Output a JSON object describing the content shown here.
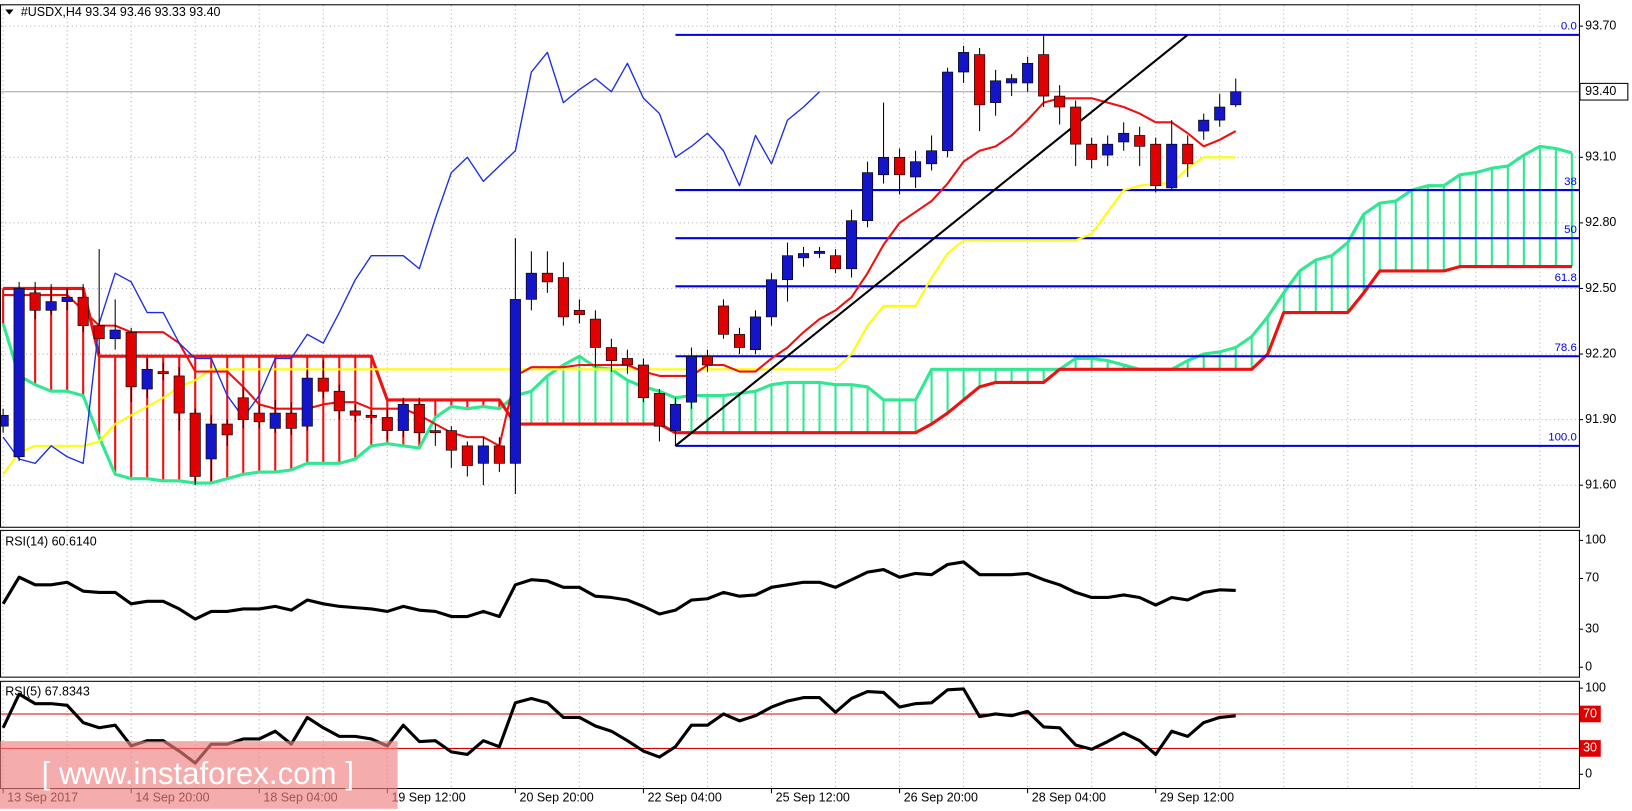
{
  "chart_data": [
    {
      "type": "candlestick",
      "header": "#USDX,H4  93.34 93.46 93.33 93.40",
      "watermark": "[ www.instaforex.com ]",
      "categories": [
        "13 Sep 2017",
        null,
        null,
        null,
        null,
        null,
        null,
        null,
        "14 Sep 20:00",
        null,
        null,
        null,
        null,
        null,
        null,
        null,
        "18 Sep 04:00",
        null,
        null,
        null,
        null,
        null,
        null,
        null,
        "19 Sep 12:00",
        null,
        null,
        null,
        null,
        null,
        null,
        null,
        "20 Sep 20:00",
        null,
        null,
        null,
        null,
        null,
        null,
        null,
        "22 Sep 04:00",
        null,
        null,
        null,
        null,
        null,
        null,
        null,
        "25 Sep 12:00",
        null,
        null,
        null,
        null,
        null,
        null,
        null,
        "26 Sep 20:00",
        null,
        null,
        null,
        null,
        null,
        null,
        null,
        "28 Sep 04:00",
        null,
        null,
        null,
        null,
        null,
        null,
        null,
        "29 Sep 12:00",
        null,
        null,
        null,
        null,
        null,
        null,
        null,
        null,
        null,
        null,
        null,
        null,
        null,
        null,
        null,
        null,
        null,
        null,
        null,
        null,
        null,
        null,
        null,
        null,
        null,
        null
      ],
      "open": [
        91.87,
        91.73,
        92.48,
        92.4,
        92.44,
        92.46,
        92.33,
        92.27,
        92.3,
        92.04,
        92.12,
        92.1,
        91.93,
        91.72,
        91.88,
        92.0,
        91.93,
        91.86,
        91.93,
        91.87,
        92.09,
        92.03,
        91.94,
        91.92,
        91.91,
        91.85,
        91.97,
        91.85,
        91.85,
        91.78,
        91.7,
        91.78,
        91.7,
        92.45,
        92.57,
        92.55,
        92.4,
        92.36,
        92.23,
        92.18,
        92.15,
        92.02,
        91.85,
        91.98,
        92.19,
        92.42,
        92.29,
        92.22,
        92.37,
        92.54,
        92.64,
        92.66,
        92.65,
        92.59,
        92.81,
        93.02,
        93.1,
        93.01,
        93.07,
        93.13,
        93.49,
        93.57,
        93.35,
        93.44,
        93.44,
        93.57,
        93.38,
        93.33,
        93.16,
        93.11,
        93.17,
        93.2,
        93.16,
        92.96,
        93.16,
        93.22,
        93.27,
        93.34,
        null,
        null,
        null,
        null,
        null,
        null,
        null,
        null,
        null,
        null,
        null,
        null,
        null,
        null,
        null,
        null,
        null,
        null,
        null,
        null,
        null
      ],
      "high": [
        91.95,
        92.53,
        92.53,
        92.52,
        92.5,
        92.52,
        92.68,
        92.45,
        92.32,
        92.18,
        92.16,
        92.14,
        91.95,
        91.92,
        91.9,
        92.05,
        91.97,
        91.99,
        91.98,
        92.13,
        92.17,
        92.06,
        91.97,
        91.94,
        91.95,
        92.0,
        92.0,
        91.88,
        91.87,
        91.8,
        91.82,
        91.82,
        92.73,
        92.67,
        92.67,
        92.62,
        92.45,
        92.4,
        92.27,
        92.22,
        92.18,
        92.04,
        92.0,
        92.23,
        92.22,
        92.45,
        92.32,
        92.4,
        92.57,
        92.71,
        92.69,
        92.69,
        92.68,
        92.86,
        93.08,
        93.35,
        93.14,
        93.13,
        93.2,
        93.51,
        93.61,
        93.6,
        93.5,
        93.48,
        93.56,
        93.66,
        93.43,
        93.36,
        93.19,
        93.2,
        93.26,
        93.24,
        93.19,
        93.27,
        93.2,
        93.3,
        93.39,
        93.46,
        null,
        null,
        null,
        null,
        null,
        null,
        null,
        null,
        null,
        null,
        null,
        null,
        null,
        null,
        null,
        null,
        null,
        null,
        null,
        null,
        null
      ],
      "low": [
        91.84,
        91.71,
        92.36,
        92.38,
        92.4,
        92.3,
        92.2,
        92.22,
        91.98,
        92.0,
        92.08,
        91.85,
        91.6,
        91.62,
        91.78,
        91.86,
        91.86,
        91.84,
        91.83,
        91.85,
        92.0,
        91.9,
        91.89,
        91.88,
        91.81,
        91.82,
        91.8,
        91.78,
        91.68,
        91.64,
        91.6,
        91.66,
        91.56,
        92.4,
        92.48,
        92.33,
        92.34,
        92.14,
        92.12,
        92.11,
        91.98,
        91.8,
        91.78,
        91.95,
        92.12,
        92.27,
        92.2,
        92.2,
        92.33,
        92.44,
        92.6,
        92.64,
        92.57,
        92.55,
        92.78,
        92.98,
        92.93,
        92.96,
        93.04,
        93.1,
        93.44,
        93.22,
        93.29,
        93.38,
        93.4,
        93.33,
        93.25,
        93.06,
        93.05,
        93.06,
        93.13,
        93.06,
        92.94,
        92.95,
        93.01,
        93.18,
        93.24,
        93.33,
        null,
        null,
        null,
        null,
        null,
        null,
        null,
        null,
        null,
        null,
        null,
        null,
        null,
        null,
        null,
        null,
        null,
        null,
        null,
        null,
        null
      ],
      "close": [
        91.92,
        92.5,
        92.4,
        92.44,
        92.46,
        92.33,
        92.27,
        92.31,
        92.05,
        92.13,
        92.11,
        91.93,
        91.64,
        91.88,
        91.83,
        91.9,
        91.89,
        91.93,
        91.86,
        92.09,
        92.03,
        91.94,
        91.92,
        91.91,
        91.85,
        91.97,
        91.84,
        91.84,
        91.76,
        91.69,
        91.78,
        91.7,
        92.45,
        92.57,
        92.53,
        92.37,
        92.38,
        92.23,
        92.17,
        92.15,
        92.0,
        91.87,
        91.97,
        92.19,
        92.15,
        92.29,
        92.23,
        92.37,
        92.54,
        92.65,
        92.66,
        92.67,
        92.59,
        92.81,
        93.03,
        93.1,
        93.02,
        93.08,
        93.13,
        93.49,
        93.58,
        93.34,
        93.45,
        93.46,
        93.53,
        93.38,
        93.33,
        93.16,
        93.09,
        93.16,
        93.21,
        93.15,
        92.97,
        93.16,
        93.07,
        93.27,
        93.33,
        93.4,
        null,
        null,
        null,
        null,
        null,
        null,
        null,
        null,
        null,
        null,
        null,
        null,
        null,
        null,
        null,
        null,
        null,
        null,
        null,
        null,
        null
      ],
      "up_color": "#1414c8",
      "down_color": "#e00000",
      "wick_color": "#000000",
      "tenkan": {
        "color": "#f01010",
        "values": [
          92.47,
          92.47,
          92.47,
          92.47,
          92.47,
          92.4,
          92.33,
          92.33,
          92.3,
          92.3,
          92.3,
          92.25,
          92.12,
          92.12,
          92.12,
          92.05,
          91.97,
          91.95,
          91.95,
          91.95,
          91.97,
          91.98,
          91.98,
          91.95,
          91.95,
          91.95,
          91.92,
          91.88,
          91.84,
          91.82,
          91.82,
          91.78,
          92.1,
          92.14,
          92.14,
          92.14,
          92.15,
          92.15,
          92.15,
          92.15,
          92.12,
          92.1,
          92.1,
          92.1,
          92.15,
          92.15,
          92.12,
          92.12,
          92.18,
          92.23,
          92.3,
          92.36,
          92.4,
          92.46,
          92.57,
          92.7,
          92.8,
          92.85,
          92.9,
          92.98,
          93.08,
          93.13,
          93.15,
          93.2,
          93.27,
          93.35,
          93.37,
          93.37,
          93.37,
          93.35,
          93.33,
          93.3,
          93.26,
          93.26,
          93.21,
          93.15,
          93.18,
          93.22,
          null,
          null,
          null,
          null,
          null,
          null,
          null,
          null,
          null,
          null,
          null,
          null,
          null,
          null,
          null,
          null,
          null,
          null,
          null,
          null,
          null
        ]
      },
      "kijun": {
        "color": "#ffff00",
        "values": [
          91.65,
          91.75,
          91.78,
          91.78,
          91.78,
          91.78,
          91.8,
          91.88,
          91.92,
          91.96,
          92.0,
          92.05,
          92.08,
          92.13,
          92.13,
          92.13,
          92.13,
          92.13,
          92.13,
          92.13,
          92.13,
          92.13,
          92.13,
          92.13,
          92.13,
          92.13,
          92.13,
          92.13,
          92.13,
          92.13,
          92.13,
          92.13,
          92.13,
          92.13,
          92.13,
          92.13,
          92.13,
          92.13,
          92.13,
          92.13,
          92.13,
          92.13,
          92.13,
          92.13,
          92.13,
          92.13,
          92.13,
          92.13,
          92.13,
          92.13,
          92.13,
          92.13,
          92.13,
          92.2,
          92.33,
          92.42,
          92.42,
          92.42,
          92.55,
          92.66,
          92.72,
          92.72,
          92.72,
          92.72,
          92.72,
          92.72,
          92.72,
          92.72,
          92.75,
          92.85,
          92.95,
          92.97,
          92.98,
          92.98,
          93.05,
          93.1,
          93.1,
          93.1,
          null,
          null,
          null,
          null,
          null,
          null,
          null,
          null,
          null,
          null,
          null,
          null,
          null,
          null,
          null,
          null,
          null,
          null,
          null,
          null,
          null
        ]
      },
      "chikou": {
        "color": "#1a2ee6",
        "values": [
          91.82,
          91.72,
          91.7,
          91.78,
          91.73,
          91.7,
          92.34,
          92.57,
          92.53,
          92.39,
          92.39,
          92.25,
          92.18,
          92.18,
          92.01,
          91.91,
          92.01,
          92.18,
          92.18,
          92.29,
          92.25,
          92.39,
          92.54,
          92.65,
          92.65,
          92.65,
          92.59,
          92.82,
          93.03,
          93.1,
          92.99,
          93.06,
          93.13,
          93.49,
          93.58,
          93.35,
          93.41,
          93.46,
          93.4,
          93.53,
          93.37,
          93.3,
          93.1,
          93.15,
          93.21,
          93.13,
          92.97,
          93.2,
          93.07,
          93.27,
          93.33,
          93.4,
          null,
          null,
          null,
          null,
          null,
          null,
          null,
          null,
          null,
          null,
          null,
          null,
          null,
          null,
          null,
          null,
          null,
          null,
          null,
          null,
          null,
          null,
          null,
          null,
          null,
          null,
          null,
          null,
          null,
          null,
          null,
          null,
          null,
          null,
          null,
          null,
          null,
          null,
          null,
          null,
          null,
          null,
          null,
          null,
          null
        ]
      },
      "span_a": {
        "color": "#30e890",
        "values": [
          92.34,
          92.1,
          92.06,
          92.03,
          92.03,
          92.01,
          91.82,
          91.65,
          91.63,
          91.63,
          91.62,
          91.62,
          91.61,
          91.61,
          91.63,
          91.65,
          91.66,
          91.66,
          91.67,
          91.7,
          91.7,
          91.7,
          91.72,
          91.78,
          91.79,
          91.78,
          91.77,
          91.91,
          91.96,
          91.95,
          91.96,
          91.95,
          92.01,
          92.03,
          92.1,
          92.15,
          92.19,
          92.14,
          92.13,
          92.08,
          92.05,
          92.03,
          92.0,
          92.01,
          92.01,
          92.01,
          92.02,
          92.03,
          92.06,
          92.07,
          92.07,
          92.07,
          92.06,
          92.06,
          92.05,
          91.99,
          91.99,
          91.99,
          92.13,
          92.13,
          92.13,
          92.13,
          92.13,
          92.13,
          92.13,
          92.13,
          92.13,
          92.18,
          92.18,
          92.17,
          92.15,
          92.13,
          92.13,
          92.13,
          92.17,
          92.2,
          92.21,
          92.23,
          92.28,
          92.37,
          92.48,
          92.58,
          92.63,
          92.65,
          92.71,
          92.84,
          92.89,
          92.9,
          92.95,
          92.97,
          92.97,
          93.02,
          93.03,
          93.05,
          93.06,
          93.11,
          93.15,
          93.14,
          93.12
        ]
      },
      "span_b": {
        "color": "#f01010",
        "values": [
          92.5,
          92.5,
          92.5,
          92.5,
          92.5,
          92.5,
          92.19,
          92.19,
          92.19,
          92.19,
          92.19,
          92.19,
          92.19,
          92.19,
          92.19,
          92.19,
          92.19,
          92.19,
          92.19,
          92.19,
          92.19,
          92.19,
          92.19,
          92.19,
          91.99,
          91.99,
          91.99,
          91.99,
          91.99,
          91.99,
          91.99,
          91.99,
          91.88,
          91.88,
          91.88,
          91.88,
          91.88,
          91.88,
          91.88,
          91.88,
          91.88,
          91.88,
          91.84,
          91.84,
          91.84,
          91.84,
          91.84,
          91.84,
          91.84,
          91.84,
          91.84,
          91.84,
          91.84,
          91.84,
          91.84,
          91.84,
          91.84,
          91.84,
          91.88,
          91.93,
          91.99,
          92.05,
          92.07,
          92.07,
          92.07,
          92.07,
          92.13,
          92.13,
          92.13,
          92.13,
          92.13,
          92.13,
          92.13,
          92.13,
          92.13,
          92.13,
          92.13,
          92.13,
          92.13,
          92.2,
          92.39,
          92.39,
          92.39,
          92.39,
          92.39,
          92.48,
          92.58,
          92.58,
          92.58,
          92.58,
          92.58,
          92.6,
          92.6,
          92.6,
          92.6,
          92.6,
          92.6,
          92.6,
          92.6
        ]
      },
      "fibonacci": {
        "color": "#0000e0",
        "start": 42,
        "levels": [
          "0.0",
          "38",
          "50",
          "61.8",
          "78.6",
          "100.0"
        ],
        "prices": [
          93.66,
          92.95,
          92.73,
          92.51,
          92.19,
          91.78
        ]
      },
      "trendline": {
        "color": "#000000",
        "x": [
          42,
          74
        ],
        "values": [
          91.78,
          93.66
        ]
      },
      "last_price": {
        "value": 93.4,
        "label": "93.40"
      },
      "ylim": [
        91.41,
        93.8
      ],
      "yticks": [
        {
          "value": 91.6,
          "label": "91.60"
        },
        {
          "value": 91.9,
          "label": "91.90"
        },
        {
          "value": 92.2,
          "label": "92.20"
        },
        {
          "value": 92.5,
          "label": "92.50"
        },
        {
          "value": 92.8,
          "label": "92.80"
        },
        {
          "value": 93.1,
          "label": "93.10"
        },
        {
          "value": 93.7,
          "label": "93.70"
        }
      ],
      "grid": true
    },
    {
      "type": "line",
      "title": "RSI(14) 60.6140",
      "color": "#000000",
      "ylim": [
        -7.4,
        108.3
      ],
      "yticks": [
        0,
        30,
        70,
        100
      ],
      "values": [
        50,
        71,
        65,
        65,
        67,
        60,
        59,
        59,
        50,
        52,
        52,
        46,
        38,
        44,
        44,
        46,
        46,
        48,
        45,
        53,
        50,
        48,
        47,
        46,
        44,
        48,
        45,
        44,
        40,
        40,
        44,
        40,
        65,
        69,
        68,
        63,
        63,
        56,
        55,
        53,
        48,
        42,
        45,
        53,
        54,
        59,
        56,
        57,
        63,
        65,
        67,
        67,
        63,
        69,
        75,
        77,
        71,
        74,
        73,
        81,
        83,
        73,
        73,
        73,
        74,
        69,
        65,
        59,
        55,
        55,
        57,
        55,
        49,
        55,
        53,
        59,
        61,
        60.6
      ]
    },
    {
      "type": "line",
      "title": "RSI(5) 67.8343",
      "color": "#000000",
      "ylim": [
        -15.9,
        108.5
      ],
      "yticks": [
        0,
        100
      ],
      "levels": [
        30,
        70
      ],
      "level_color": "#e00000",
      "values": [
        54,
        93,
        82,
        82,
        80,
        60,
        54,
        57,
        33,
        39,
        39,
        27,
        13,
        35,
        35,
        41,
        41,
        50,
        35,
        66,
        54,
        44,
        44,
        41,
        33,
        57,
        38,
        39,
        26,
        23,
        39,
        32,
        83,
        88,
        83,
        66,
        66,
        56,
        50,
        39,
        27,
        20,
        32,
        57,
        57,
        70,
        62,
        68,
        78,
        85,
        89,
        89,
        72,
        88,
        96,
        95,
        78,
        82,
        83,
        98,
        99,
        67,
        70,
        68,
        73,
        55,
        54,
        34,
        29,
        38,
        48,
        39,
        23,
        50,
        44,
        60,
        66,
        67.8
      ]
    }
  ]
}
